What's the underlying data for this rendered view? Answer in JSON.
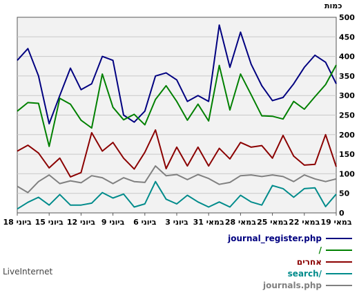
{
  "branding": "LiveInternet",
  "chart_data": {
    "type": "line",
    "y_axis_label": "כמות",
    "ylim": [
      0,
      500
    ],
    "y_ticks": [
      0,
      50,
      100,
      150,
      200,
      250,
      300,
      350,
      400,
      450,
      500
    ],
    "x_axis_direction": "right-to-left",
    "x_tick_labels": [
      "19 במאי",
      "22 במאי",
      "25 במאי",
      "28 במאי",
      "31 במאי",
      "3 ביוני",
      "6 ביוני",
      "9 ביוני",
      "12 ביוני",
      "15 ביוני",
      "18 ביוני"
    ],
    "grid": true,
    "legend_placement": "bottom-right",
    "series": [
      {
        "name": "journal_register.php",
        "color": "#000080",
        "values": [
          390,
          420,
          350,
          228,
          300,
          370,
          315,
          330,
          400,
          390,
          250,
          232,
          260,
          350,
          358,
          340,
          285,
          300,
          285,
          480,
          372,
          462,
          380,
          325,
          287,
          295,
          330,
          372,
          403,
          385,
          330
        ]
      },
      {
        "name": "/",
        "color": "#008000",
        "values": [
          260,
          282,
          280,
          170,
          293,
          278,
          237,
          217,
          355,
          270,
          238,
          252,
          225,
          290,
          325,
          285,
          237,
          278,
          235,
          377,
          263,
          355,
          302,
          248,
          247,
          240,
          285,
          265,
          297,
          328,
          378
        ]
      },
      {
        "name": "אחרים",
        "color": "#8b0000",
        "values": [
          158,
          173,
          153,
          115,
          140,
          92,
          103,
          205,
          158,
          180,
          140,
          112,
          155,
          212,
          113,
          168,
          120,
          168,
          120,
          165,
          138,
          180,
          168,
          172,
          140,
          198,
          145,
          122,
          124,
          200,
          118
        ]
      },
      {
        "name": "search/",
        "color": "#008b8b",
        "values": [
          10,
          27,
          40,
          20,
          47,
          20,
          20,
          25,
          52,
          38,
          48,
          15,
          23,
          80,
          35,
          23,
          45,
          28,
          15,
          28,
          15,
          45,
          28,
          20,
          70,
          62,
          40,
          62,
          64,
          16,
          48
        ]
      },
      {
        "name": "journals.php",
        "color": "#808080",
        "values": [
          68,
          52,
          80,
          97,
          75,
          82,
          77,
          95,
          90,
          75,
          90,
          80,
          78,
          120,
          95,
          98,
          85,
          98,
          88,
          73,
          78,
          95,
          97,
          93,
          97,
          93,
          80,
          97,
          87,
          80,
          87
        ]
      }
    ]
  }
}
